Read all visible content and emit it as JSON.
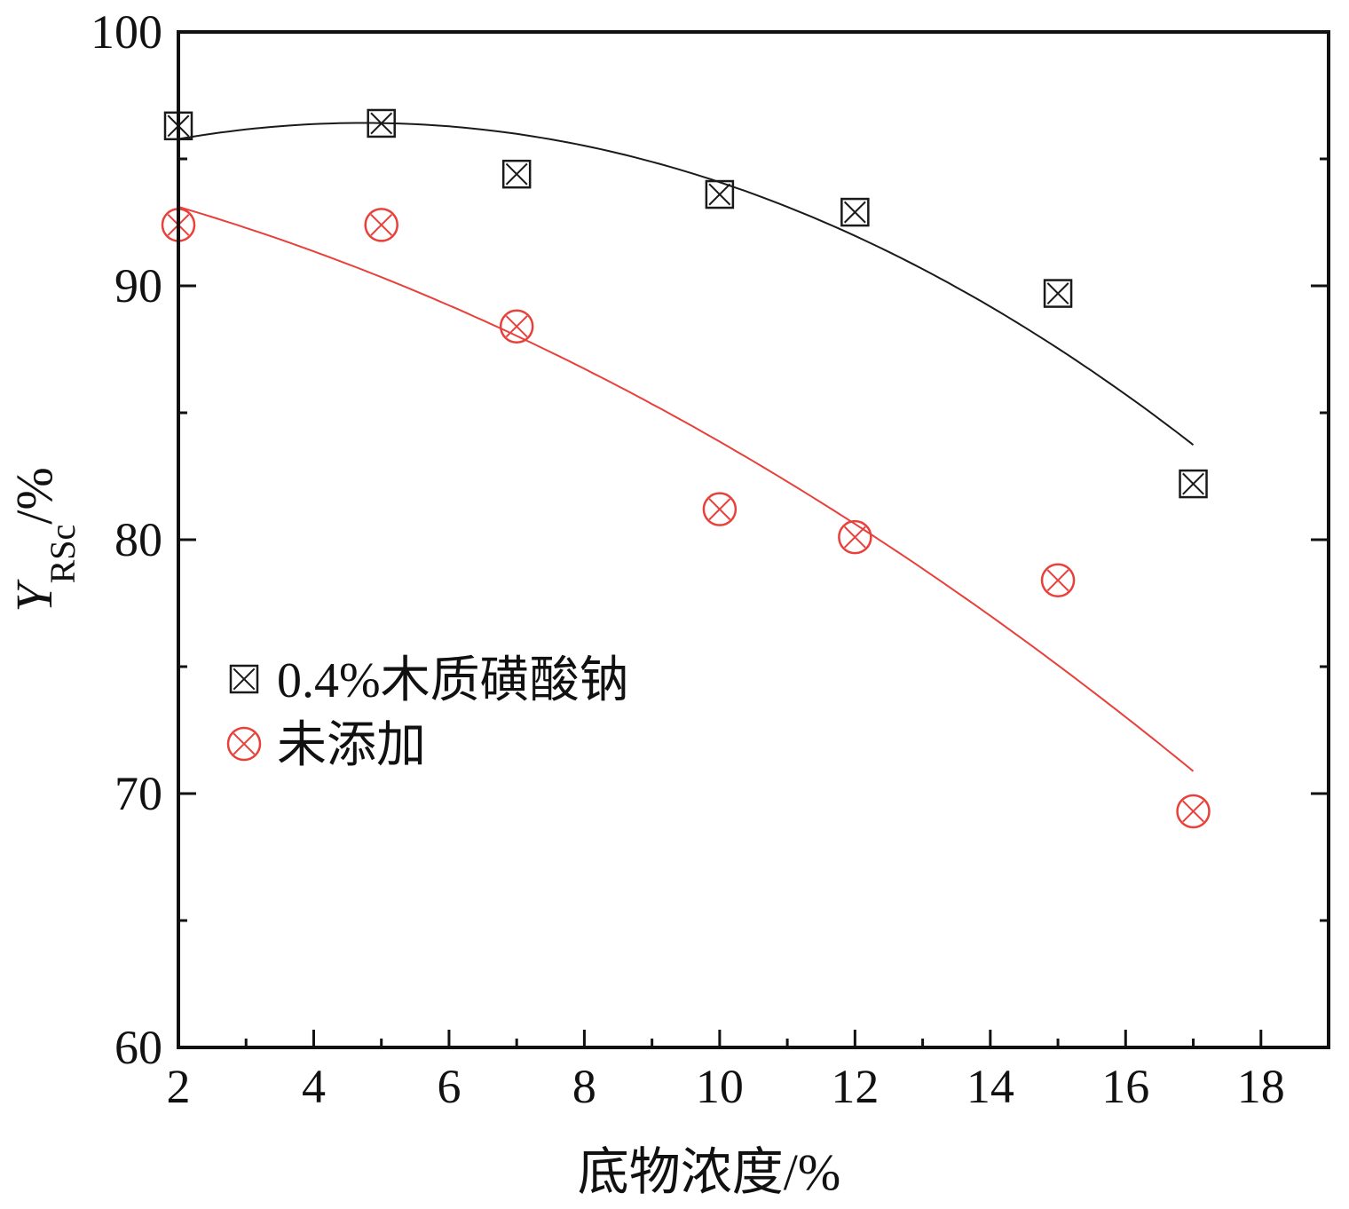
{
  "chart_data": {
    "type": "scatter",
    "xlabel": "底物浓度/%",
    "ylabel": {
      "symbol": "Y",
      "subscript": "RSc",
      "unit": "/%"
    },
    "xlim": [
      2,
      19
    ],
    "ylim": [
      60,
      100
    ],
    "x_ticks": [
      2,
      4,
      6,
      8,
      10,
      12,
      14,
      16,
      18
    ],
    "y_ticks": [
      60,
      70,
      80,
      90,
      100
    ],
    "grid": false,
    "legend_position": "center-left",
    "series": [
      {
        "name": "0.4%木质磺酸钠",
        "marker": "boxed-x",
        "color": "#1a1a1a",
        "points": [
          {
            "x": 2,
            "y": 96.3
          },
          {
            "x": 5,
            "y": 96.4
          },
          {
            "x": 7,
            "y": 94.4
          },
          {
            "x": 10,
            "y": 93.6
          },
          {
            "x": 12,
            "y": 92.9
          },
          {
            "x": 15,
            "y": 89.7
          },
          {
            "x": 17,
            "y": 82.2
          }
        ],
        "fit": {
          "type": "quadratic",
          "x_range": [
            2,
            17
          ],
          "points": [
            {
              "x": 2,
              "y": 95.8
            },
            {
              "x": 5,
              "y": 96.4
            },
            {
              "x": 7,
              "y": 95.9
            },
            {
              "x": 10,
              "y": 94.2
            },
            {
              "x": 12,
              "y": 92.0
            },
            {
              "x": 15,
              "y": 87.4
            },
            {
              "x": 17,
              "y": 83.8
            }
          ]
        }
      },
      {
        "name": "未添加",
        "marker": "circled-x",
        "color": "#e8403a",
        "points": [
          {
            "x": 2,
            "y": 92.4
          },
          {
            "x": 5,
            "y": 92.4
          },
          {
            "x": 7,
            "y": 88.4
          },
          {
            "x": 10,
            "y": 81.2
          },
          {
            "x": 12,
            "y": 80.1
          },
          {
            "x": 15,
            "y": 78.4
          },
          {
            "x": 17,
            "y": 69.3
          }
        ],
        "fit": {
          "type": "quadratic",
          "x_range": [
            2,
            17
          ],
          "points": [
            {
              "x": 2,
              "y": 93.1
            },
            {
              "x": 5,
              "y": 90.4
            },
            {
              "x": 7,
              "y": 88.0
            },
            {
              "x": 10,
              "y": 83.8
            },
            {
              "x": 12,
              "y": 80.6
            },
            {
              "x": 15,
              "y": 75.2
            },
            {
              "x": 17,
              "y": 70.8
            }
          ]
        }
      }
    ]
  }
}
